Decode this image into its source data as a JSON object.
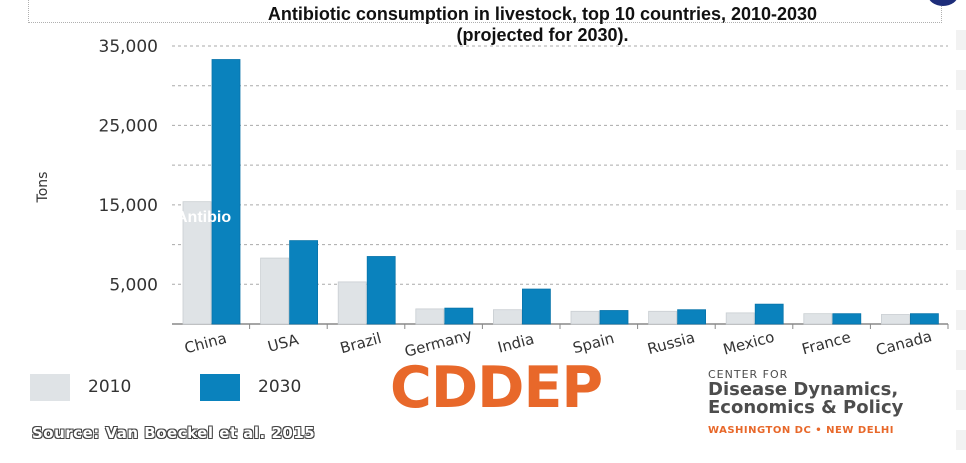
{
  "chart_data": {
    "type": "bar",
    "title_line1": "Antibiotic consumption in livestock, top 10 countries, 2010-2030",
    "title_line2": "(projected for 2030).",
    "ylabel": "Tons",
    "ylim": [
      0,
      35000
    ],
    "yticks": [
      5000,
      15000,
      25000,
      35000
    ],
    "ytick_labels": [
      "5,000",
      "15,000",
      "25,000",
      "35,000"
    ],
    "categories": [
      "China",
      "USA",
      "Brazil",
      "Germany",
      "India",
      "Spain",
      "Russia",
      "Mexico",
      "France",
      "Canada"
    ],
    "series": [
      {
        "name": "2010",
        "color": "#dfe3e6",
        "values": [
          15400,
          8300,
          5300,
          1900,
          1800,
          1600,
          1600,
          1400,
          1300,
          1200
        ]
      },
      {
        "name": "2030",
        "color": "#0a82bd",
        "values": [
          33300,
          10500,
          8500,
          2000,
          4400,
          1700,
          1800,
          2500,
          1300,
          1300
        ]
      }
    ],
    "overlay_text": "Antibio",
    "legend_position": "bottom-left"
  },
  "branding": {
    "logo": "CDDEP",
    "org_line1": "CENTER FOR",
    "org_line2": "Disease Dynamics,",
    "org_line3": "Economics & Policy",
    "org_line4": "WASHINGTON DC • NEW DELHI"
  },
  "source": "Source: Van Boeckel et al. 2015"
}
